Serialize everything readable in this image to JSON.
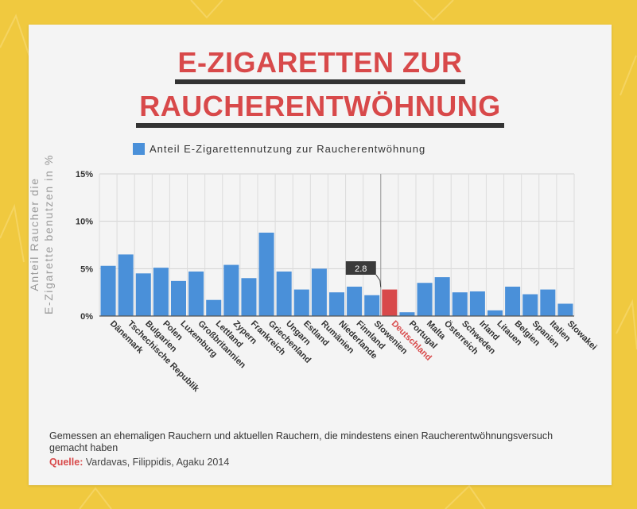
{
  "title": {
    "line1": "E-ZIGARETTEN ZUR",
    "line2": "RAUCHERENTWÖHNUNG"
  },
  "legend": {
    "label": "Anteil E-Zigarettennutzung zur Raucherentwöhnung"
  },
  "ylabel": {
    "line1": "Anteil Raucher die",
    "line2": "E-Zigarette benutzen in %"
  },
  "footnote": {
    "text": "Gemessen an ehemaligen Rauchern und aktuellen Rauchern, die mindestens einen Raucherentwöhnungsversuch gemacht haben",
    "source_key": "Quelle:",
    "source_value": "Vardavas, Filippidis, Agaku 2014"
  },
  "colors": {
    "bar": "#4a90d9",
    "highlight": "#d8494a",
    "title": "#d8494a",
    "background": "#f0c93f"
  },
  "chart_data": {
    "type": "bar",
    "title": "",
    "xlabel": "",
    "ylabel": "Anteil Raucher die E-Zigarette benutzen in %",
    "ylim": [
      0,
      15
    ],
    "yticks": [
      "0%",
      "5%",
      "10%",
      "15%"
    ],
    "grid": true,
    "legend_position": "top",
    "categories": [
      "Dänemark",
      "Tschechische Republik",
      "Bulgarien",
      "Polen",
      "Luxemburg",
      "Großbritannien",
      "Lettland",
      "Zypern",
      "Frankreich",
      "Griechenland",
      "Ungarn",
      "Estland",
      "Rumänien",
      "Niederlande",
      "Finnland",
      "Slowenien",
      "Deutschland",
      "Portugal",
      "Malta",
      "Österreich",
      "Schweden",
      "Irland",
      "Litauen",
      "Belgien",
      "Spanien",
      "Italien",
      "Slowakei"
    ],
    "series": [
      {
        "name": "Anteil E-Zigarettennutzung zur Raucherentwöhnung",
        "values": [
          5.3,
          6.5,
          4.5,
          5.1,
          3.7,
          4.7,
          1.7,
          5.4,
          4.0,
          8.8,
          4.7,
          2.8,
          5.0,
          2.5,
          3.1,
          2.2,
          2.8,
          0.4,
          3.5,
          4.1,
          2.5,
          2.6,
          0.6,
          3.1,
          2.3,
          2.8,
          1.3
        ]
      }
    ],
    "highlight": {
      "category": "Deutschland",
      "label": "2.8"
    }
  }
}
